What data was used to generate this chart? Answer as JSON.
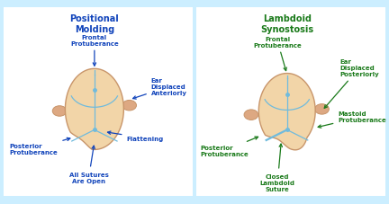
{
  "left_title_line1": "Positional",
  "left_title_line2": "Molding",
  "right_title_line1": "Lambdoid",
  "right_title_line2": "Synostosis",
  "left_border_color": "#4AABE0",
  "right_border_color": "#2A8C2A",
  "head_fill": "#F2D5A8",
  "head_edge": "#C8956A",
  "ear_fill": "#DDA882",
  "ear_edge": "#C8956A",
  "suture_color": "#70BBDD",
  "suture_dot_color": "#70BBDD",
  "left_text_color": "#1144BB",
  "right_text_color": "#1A7A1A",
  "panel_bg": "#FFFFFF",
  "outer_bg": "#CCEEFF",
  "title_fontsize": 7.0,
  "label_fontsize": 5.0
}
